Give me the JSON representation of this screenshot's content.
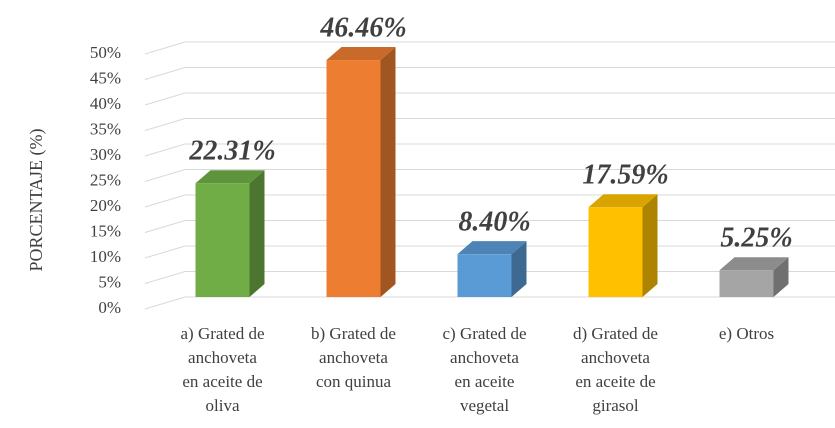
{
  "chart_data": {
    "type": "bar3d",
    "y_label": "PORCENTAJE (%)",
    "categories": [
      "a) Grated de\nanchoveta\nen aceite de\noliva",
      "b) Grated de\nanchoveta\ncon quinua",
      "c) Grated de\nanchoveta\nen aceite\nvegetal",
      "d) Grated de\nanchoveta\nen aceite de\ngirasol",
      "e) Otros"
    ],
    "values": [
      22.31,
      46.46,
      8.4,
      17.59,
      5.25
    ],
    "value_labels": [
      "22.31%",
      "46.46%",
      "8.40%",
      "17.59%",
      "5.25%"
    ],
    "colors": [
      "#70ad47",
      "#ed7d31",
      "#5b9bd5",
      "#ffc000",
      "#a5a5a5"
    ],
    "ylim": [
      0,
      50
    ],
    "yticks": [
      {
        "value": 0,
        "label": "0%"
      },
      {
        "value": 5,
        "label": "5%"
      },
      {
        "value": 10,
        "label": "10%"
      },
      {
        "value": 15,
        "label": "15%"
      },
      {
        "value": 20,
        "label": "20%"
      },
      {
        "value": 25,
        "label": "25%"
      },
      {
        "value": 30,
        "label": "30%"
      },
      {
        "value": 35,
        "label": "35%"
      },
      {
        "value": 40,
        "label": "40%"
      },
      {
        "value": 45,
        "label": "45%"
      },
      {
        "value": 50,
        "label": "50%"
      }
    ],
    "grid": true
  }
}
